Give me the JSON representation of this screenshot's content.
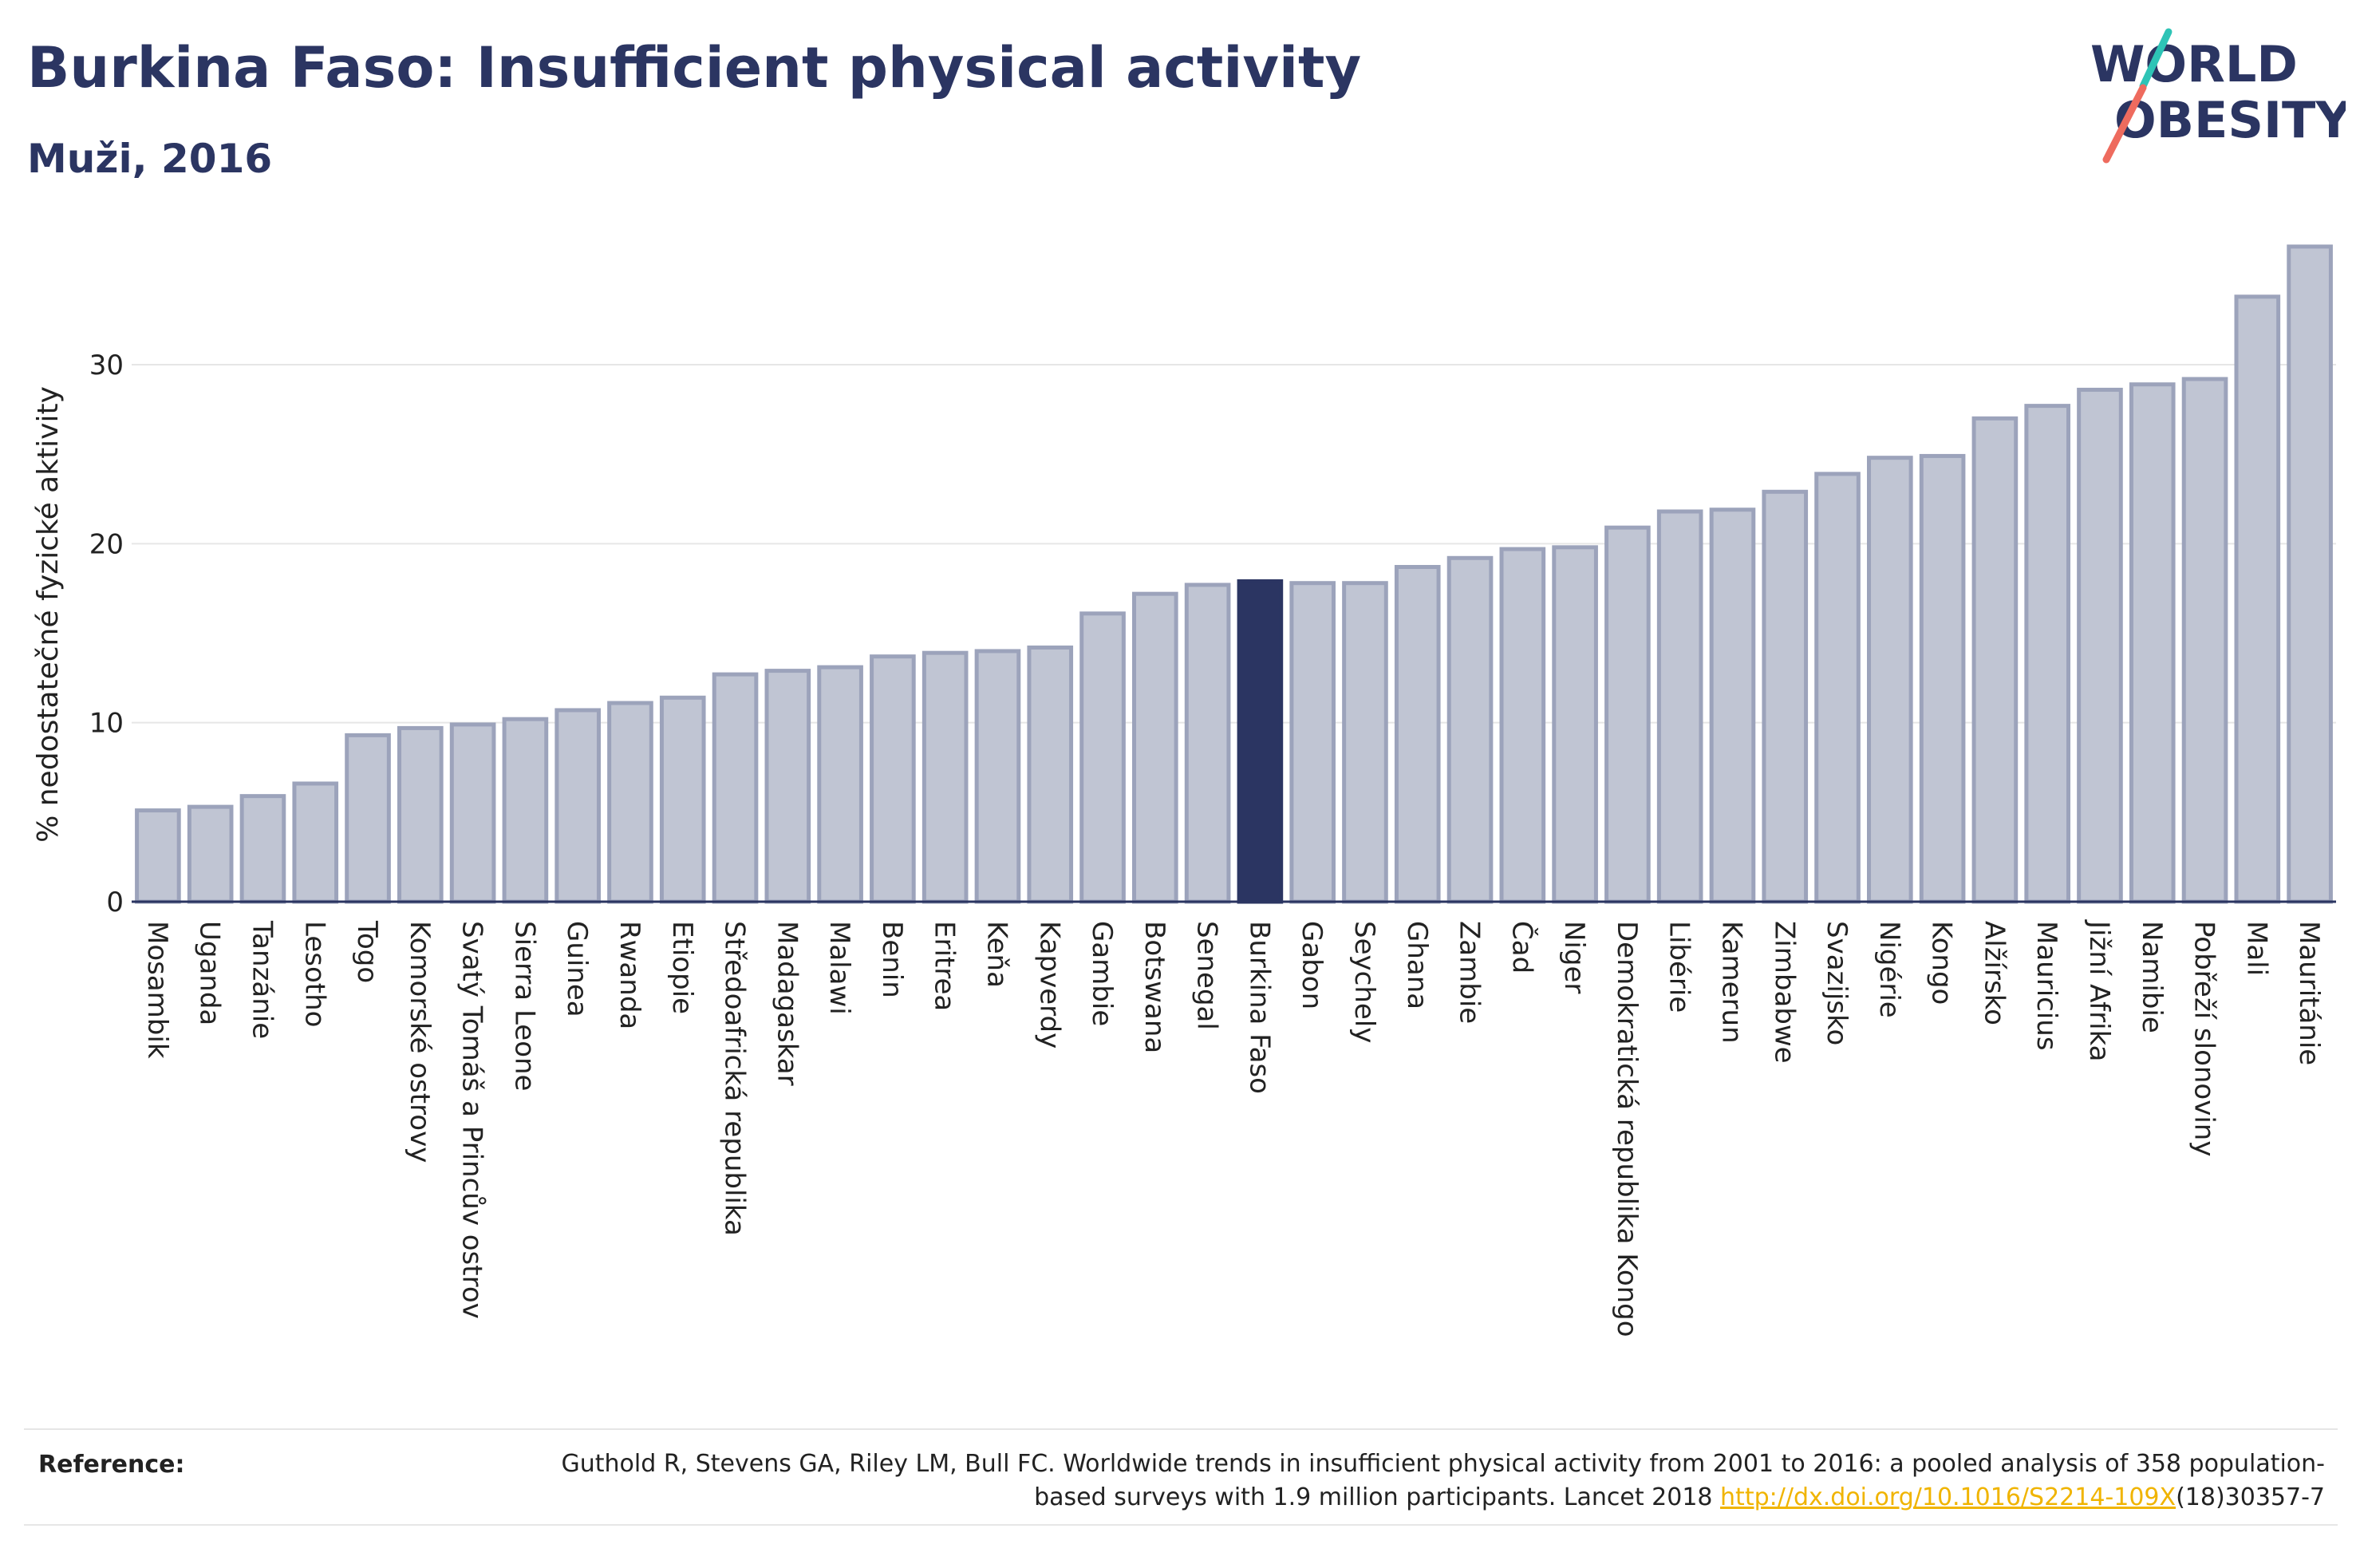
{
  "header": {
    "title": "Burkina Faso: Insufficient physical activity",
    "subtitle": "Muži, 2016"
  },
  "logo": {
    "line1": "WORLD",
    "line2": "OBESITY",
    "text_color": "#2b3562",
    "slash_colors": [
      "#2ec4b6",
      "#ee6b5e"
    ]
  },
  "colors": {
    "bar": "#c0c5d3",
    "bar_border": "#9ca3bb",
    "highlight": "#2b3562",
    "gridline": "#e6e6e6",
    "axis": "#2b3562"
  },
  "chart_data": {
    "type": "bar",
    "title": "Burkina Faso: Insufficient physical activity",
    "subtitle": "Muži, 2016",
    "xlabel": "",
    "ylabel": "% nedostatečné fyzické aktivity",
    "ylim": [
      0,
      37
    ],
    "yticks": [
      0,
      10,
      20,
      30
    ],
    "grid": true,
    "highlight": "Burkina Faso",
    "categories": [
      "Mosambik",
      "Uganda",
      "Tanzánie",
      "Lesotho",
      "Togo",
      "Komorské ostrovy",
      "Svatý Tomáš a Princův ostrov",
      "Sierra Leone",
      "Guinea",
      "Rwanda",
      "Etiopie",
      "Středoafrická republika",
      "Madagaskar",
      "Malawi",
      "Benin",
      "Eritrea",
      "Keňa",
      "Kapverdy",
      "Gambie",
      "Botswana",
      "Senegal",
      "Burkina Faso",
      "Gabon",
      "Seychely",
      "Ghana",
      "Zambie",
      "Čad",
      "Niger",
      "Demokratická republika Kongo",
      "Libérie",
      "Kamerun",
      "Zimbabwe",
      "Svazijsko",
      "Nigérie",
      "Kongo",
      "Alžírsko",
      "Mauricius",
      "Jižní Afrika",
      "Namibie",
      "Pobřeží slonoviny",
      "Mali",
      "Mauritánie"
    ],
    "values": [
      5.1,
      5.3,
      5.9,
      6.6,
      9.3,
      9.7,
      9.9,
      10.2,
      10.7,
      11.1,
      11.4,
      12.7,
      12.9,
      13.1,
      13.7,
      13.9,
      14.0,
      14.2,
      16.1,
      17.2,
      17.7,
      17.9,
      17.8,
      17.8,
      18.7,
      19.2,
      19.7,
      19.8,
      20.9,
      21.8,
      21.9,
      22.9,
      23.9,
      24.8,
      24.9,
      27.0,
      27.7,
      28.6,
      28.9,
      29.2,
      33.8,
      36.6
    ]
  },
  "reference": {
    "label": "Reference:",
    "text_before": "Guthold R, Stevens GA, Riley LM, Bull FC. Worldwide trends in insufficient physical activity from 2001 to 2016: a pooled analysis of 358 population-based surveys with 1.9 million participants. Lancet 2018 ",
    "link_text": "http://dx.doi.org/10.1016/S2214-109X",
    "text_after": "(18)30357-7"
  }
}
